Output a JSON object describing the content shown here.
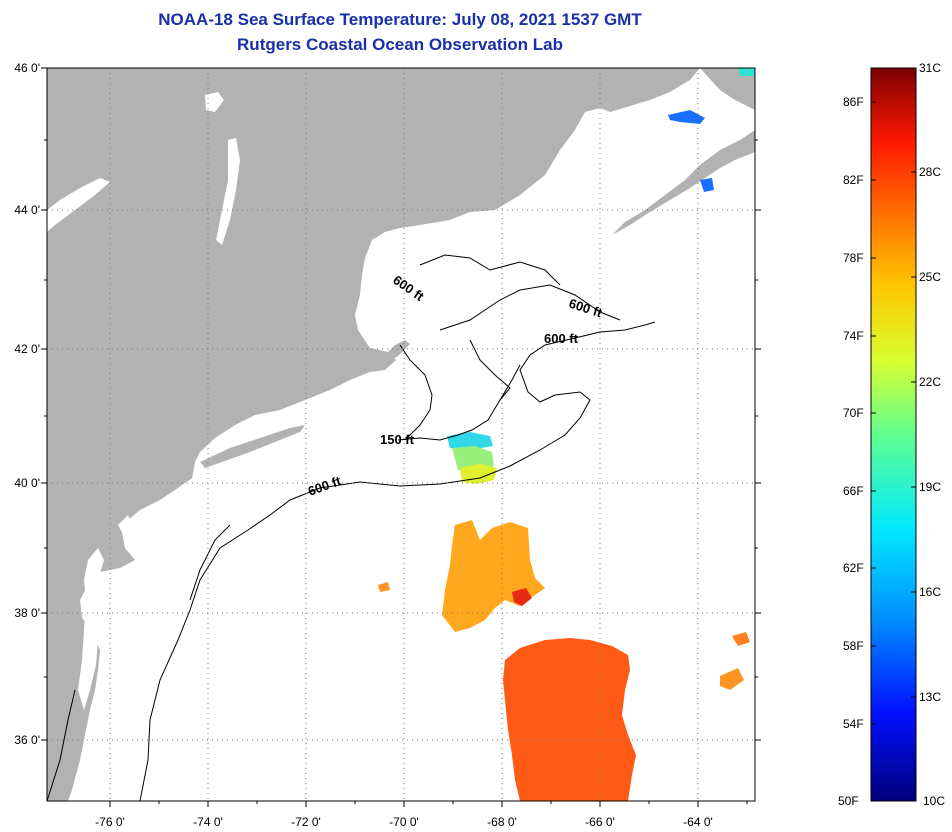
{
  "title": {
    "line1": "NOAA-18 Sea Surface Temperature:  July 08, 2021 1537 GMT",
    "line2": "Rutgers Coastal Ocean Observation Lab"
  },
  "axes": {
    "lat_labels": [
      "46 0'",
      "44 0'",
      "42 0'",
      "40 0'",
      "38 0'",
      "36 0'"
    ],
    "lon_labels": [
      "-76 0'",
      "-74 0'",
      "-72 0'",
      "-70 0'",
      "-68 0'",
      "-66 0'",
      "-64 0'"
    ]
  },
  "depth_labels": [
    "600 ft",
    "600 ft",
    "600 ft",
    "150 ft",
    "600 ft"
  ],
  "colorbar": {
    "fahrenheit": [
      "86F",
      "82F",
      "78F",
      "74F",
      "70F",
      "66F",
      "62F",
      "58F",
      "54F",
      "50F"
    ],
    "celsius": [
      "31C",
      "28C",
      "25C",
      "22C",
      "19C",
      "16C",
      "13C",
      "10C"
    ]
  },
  "colors": {
    "land": "#b2b2b2",
    "title": "#1a2fa8"
  }
}
